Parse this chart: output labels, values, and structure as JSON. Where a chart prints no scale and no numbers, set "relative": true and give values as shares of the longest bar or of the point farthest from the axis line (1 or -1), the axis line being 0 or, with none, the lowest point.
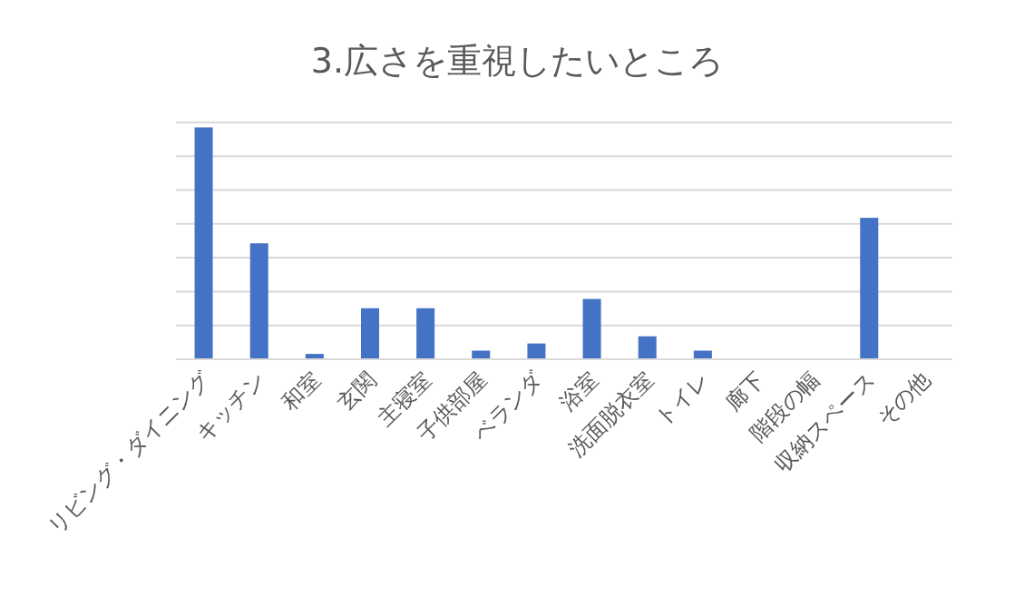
{
  "chart_data": {
    "type": "bar",
    "title": "3.広さを重視したいところ",
    "categories": [
      "リビング・ダイニング",
      "キッチン",
      "和室",
      "玄関",
      "主寝室",
      "子供部屋",
      "ベランダ",
      "浴室",
      "洗面脱衣室",
      "トイレ",
      "廊下",
      "階段の幅",
      "収納スペース",
      "その他"
    ],
    "values": [
      1,
      0.5,
      0.023,
      0.22,
      0.22,
      0.037,
      0.068,
      0.26,
      0.099,
      0.037,
      0,
      0,
      0.61,
      0
    ],
    "color": "#4472c4",
    "relative": true,
    "grid": "y"
  }
}
